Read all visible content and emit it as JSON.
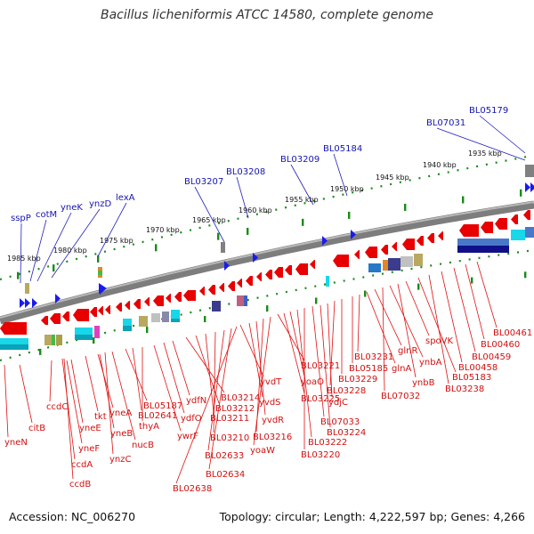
{
  "title": "Bacillus licheniformis ATCC 14580, complete genome",
  "footer": {
    "accession": "Accession: NC_006270",
    "summary": "Topology: circular; Length: 4,222,597 bp; Genes: 4,266"
  },
  "colors": {
    "backbone": "#808080",
    "forward_gene_label": "#1515b0",
    "reverse_gene": "#e80000",
    "reverse_gene_label": "#d21010",
    "tick": "#1a8a1a"
  },
  "kbp_labels": [
    "1935 kbp",
    "1940 kbp",
    "1945 kbp",
    "1950 kbp",
    "1955 kbp",
    "1960 kbp",
    "1965 kbp",
    "1970 kbp",
    "1975 kbp",
    "1980 kbp",
    "1985 kbp"
  ],
  "top_labels": [
    "sspP",
    "cotM",
    "yneK",
    "ynzD",
    "lexA",
    "BL03207",
    "BL03208",
    "BL03209",
    "BL05184",
    "BL07031",
    "BL05179"
  ],
  "bottom_labels": [
    "yneN",
    "citB",
    "ccdC",
    "yneF",
    "yneE",
    "ccdA",
    "ccdB",
    "tkt",
    "yneA",
    "yneB",
    "ynzC",
    "nucB",
    "BL05187",
    "BL02641",
    "thyA",
    "ywrF",
    "ydfO",
    "ydfN",
    "BL03214",
    "BL03212",
    "BL03211",
    "BL03210",
    "BL02633",
    "BL02634",
    "BL02638",
    "yvdT",
    "yvdS",
    "yvdR",
    "BL03216",
    "yoaW",
    "BL03221",
    "BL03225",
    "yoaO",
    "BL03222",
    "BL03220",
    "BL07033",
    "BL03224",
    "ydjC",
    "BL03228",
    "BL03229",
    "BL05185",
    "BL03231",
    "glnA",
    "glnR",
    "BL07032",
    "ynbA",
    "ynbB",
    "spoVK",
    "BL05183",
    "BL03238",
    "BL00458",
    "BL00459",
    "BL00460",
    "BL00461"
  ]
}
